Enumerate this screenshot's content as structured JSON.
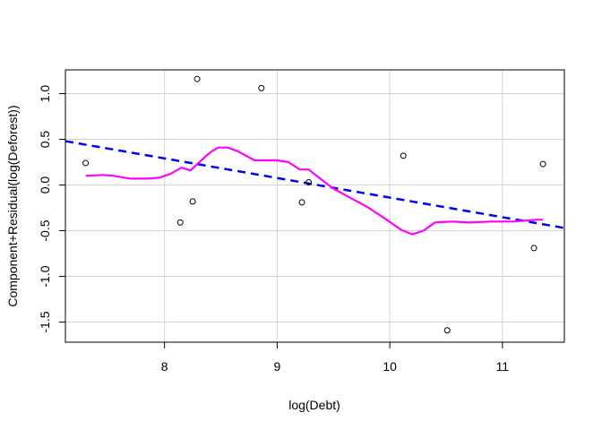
{
  "chart_data": {
    "type": "scatter",
    "title": "",
    "xlabel": "log(Debt)",
    "ylabel": "Component+Residual(log(Deforest))",
    "xlim": [
      7.12,
      11.55
    ],
    "ylim": [
      -1.72,
      1.26
    ],
    "xticks": [
      8,
      9,
      10,
      11
    ],
    "yticks": [
      -1.5,
      -1.0,
      -0.5,
      0.0,
      0.5,
      1.0
    ],
    "xtick_labels": [
      "8",
      "9",
      "10",
      "11"
    ],
    "ytick_labels": [
      "-1.5",
      "-1.0",
      "-0.5",
      "0.0",
      "0.5",
      "1.0"
    ],
    "grid": true,
    "colors": {
      "points": "#000000",
      "fit_line": "#0000ee",
      "smooth_line": "#ff00ff",
      "grid": "#d3d3d3"
    },
    "points": [
      {
        "x": 7.3,
        "y": 0.24
      },
      {
        "x": 8.14,
        "y": -0.41
      },
      {
        "x": 8.25,
        "y": -0.18
      },
      {
        "x": 8.29,
        "y": 1.16
      },
      {
        "x": 8.86,
        "y": 1.06
      },
      {
        "x": 9.22,
        "y": -0.19
      },
      {
        "x": 9.28,
        "y": 0.03
      },
      {
        "x": 10.12,
        "y": 0.32
      },
      {
        "x": 10.51,
        "y": -1.59
      },
      {
        "x": 11.28,
        "y": -0.69
      },
      {
        "x": 11.36,
        "y": 0.23
      }
    ],
    "series": [
      {
        "style": "dashed",
        "x": [
          7.12,
          11.55
        ],
        "y": [
          0.48,
          -0.47
        ]
      },
      {
        "style": "solid",
        "x": [
          7.3,
          7.45,
          7.55,
          7.7,
          7.85,
          7.95,
          8.05,
          8.15,
          8.23,
          8.3,
          8.37,
          8.42,
          8.48,
          8.56,
          8.65,
          8.8,
          9.0,
          9.1,
          9.2,
          9.28,
          9.35,
          9.5,
          9.65,
          9.8,
          9.95,
          10.1,
          10.2,
          10.3,
          10.4,
          10.55,
          10.7,
          10.9,
          11.1,
          11.2,
          11.3,
          11.36
        ],
        "y": [
          0.1,
          0.11,
          0.1,
          0.07,
          0.07,
          0.08,
          0.12,
          0.19,
          0.16,
          0.24,
          0.32,
          0.37,
          0.41,
          0.41,
          0.37,
          0.27,
          0.27,
          0.25,
          0.17,
          0.17,
          0.1,
          -0.04,
          -0.14,
          -0.24,
          -0.36,
          -0.49,
          -0.54,
          -0.5,
          -0.41,
          -0.4,
          -0.41,
          -0.4,
          -0.4,
          -0.39,
          -0.38,
          -0.38
        ]
      }
    ]
  }
}
